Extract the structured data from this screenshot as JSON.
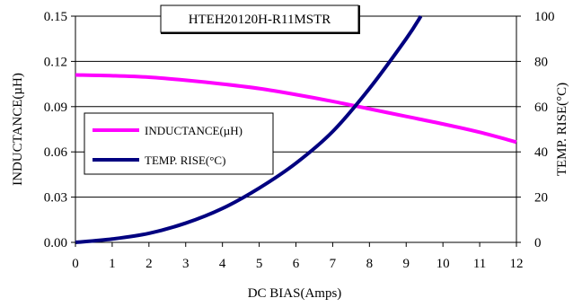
{
  "chart_data": {
    "type": "line",
    "title": "HTEH20120H-R11MSTR",
    "xlabel": "DC BIAS(Amps)",
    "ylabel": "INDUCTANCE(µH)",
    "y2label": "TEMP. RISE(°C)",
    "xlim": [
      0,
      12
    ],
    "ylim": [
      0,
      0.15
    ],
    "y2lim": [
      0,
      100
    ],
    "x_ticks": [
      "0",
      "1",
      "2",
      "3",
      "4",
      "5",
      "6",
      "7",
      "8",
      "9",
      "10",
      "11",
      "12"
    ],
    "y_ticks": [
      "0.00",
      "0.03",
      "0.06",
      "0.09",
      "0.12",
      "0.15"
    ],
    "y2_ticks": [
      "0",
      "20",
      "40",
      "60",
      "80",
      "100"
    ],
    "grid": "horizontal",
    "legend_position": "left",
    "series": [
      {
        "name": "INDUCTANCE(µH)",
        "axis": "left",
        "color": "#FF00FF",
        "x": [
          0,
          1,
          2,
          3,
          4,
          5,
          6,
          7,
          8,
          9,
          10,
          11,
          12
        ],
        "y": [
          0.111,
          0.1105,
          0.1095,
          0.1075,
          0.105,
          0.102,
          0.098,
          0.0935,
          0.0885,
          0.0835,
          0.0785,
          0.073,
          0.0665
        ]
      },
      {
        "name": "TEMP. RISE(°C)",
        "axis": "right",
        "color": "#000080",
        "x": [
          0,
          1,
          2,
          3,
          4,
          5,
          6,
          7,
          8,
          9,
          9.4
        ],
        "y": [
          0,
          1.5,
          4,
          8.5,
          15,
          24,
          35,
          49,
          68,
          90,
          100
        ]
      }
    ]
  }
}
